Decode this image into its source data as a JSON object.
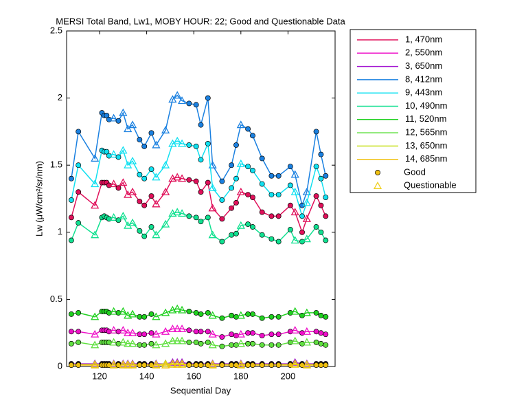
{
  "chart_data": {
    "type": "line",
    "title": "MERSI Total Band,  Lw1, MOBY HOUR: 22;  Good and Questionable Data",
    "x_label": "Sequential Day",
    "y_label": "Lw (μW/cm²/sr/nm)",
    "xlim": [
      106,
      220
    ],
    "xticks": [
      120,
      140,
      160,
      180,
      200
    ],
    "ylim": [
      0,
      2.5
    ],
    "yticks": [
      0,
      0.5,
      1,
      1.5,
      2,
      2.5
    ],
    "x": [
      108,
      111,
      118,
      121,
      122,
      123,
      124,
      126,
      128,
      130,
      132,
      134,
      137,
      139,
      142,
      144,
      148,
      151,
      153,
      155,
      158,
      161,
      163,
      166,
      168,
      172,
      176,
      178,
      180,
      183,
      185,
      189,
      193,
      196,
      201,
      203,
      206,
      208,
      212,
      214,
      216
    ],
    "questionable": [
      false,
      false,
      true,
      false,
      false,
      false,
      false,
      true,
      false,
      true,
      true,
      true,
      false,
      false,
      false,
      true,
      true,
      true,
      true,
      true,
      false,
      false,
      false,
      false,
      true,
      false,
      false,
      false,
      true,
      false,
      false,
      false,
      false,
      false,
      false,
      true,
      false,
      true,
      false,
      false,
      false
    ],
    "marker_legend": [
      "Good",
      "Questionable"
    ],
    "series": [
      {
        "name": "1, 470nm",
        "color": "#e0105a",
        "values": [
          1.11,
          1.3,
          1.2,
          1.37,
          1.37,
          1.37,
          1.35,
          1.36,
          1.33,
          1.37,
          1.28,
          1.3,
          1.23,
          1.2,
          1.27,
          1.21,
          1.3,
          1.4,
          1.41,
          1.4,
          1.39,
          1.38,
          1.3,
          1.37,
          1.18,
          1.1,
          1.18,
          1.22,
          1.3,
          1.28,
          1.26,
          1.15,
          1.12,
          1.12,
          1.2,
          1.15,
          1.0,
          1.1,
          1.27,
          1.2,
          1.12
        ]
      },
      {
        "name": "2, 550nm",
        "color": "#ee10c8",
        "values": [
          0.26,
          0.26,
          0.24,
          0.27,
          0.27,
          0.27,
          0.26,
          0.27,
          0.26,
          0.27,
          0.25,
          0.25,
          0.24,
          0.24,
          0.25,
          0.24,
          0.26,
          0.28,
          0.28,
          0.28,
          0.27,
          0.26,
          0.26,
          0.26,
          0.24,
          0.22,
          0.24,
          0.23,
          0.24,
          0.25,
          0.25,
          0.23,
          0.24,
          0.24,
          0.26,
          0.27,
          0.25,
          0.26,
          0.26,
          0.25,
          0.24
        ]
      },
      {
        "name": "3, 650nm",
        "color": "#a010d0",
        "values": [
          0.02,
          0.02,
          0.02,
          0.02,
          0.02,
          0.02,
          0.02,
          0.02,
          0.02,
          0.02,
          0.02,
          0.02,
          0.02,
          0.02,
          0.02,
          0.02,
          0.02,
          0.03,
          0.03,
          0.03,
          0.02,
          0.02,
          0.02,
          0.02,
          0.02,
          0.02,
          0.02,
          0.02,
          0.02,
          0.02,
          0.02,
          0.02,
          0.02,
          0.02,
          0.02,
          0.03,
          0.02,
          0.02,
          0.02,
          0.02,
          0.02
        ]
      },
      {
        "name": "8, 412nm",
        "color": "#1a80e0",
        "values": [
          1.4,
          1.75,
          1.55,
          1.89,
          1.87,
          1.87,
          1.84,
          1.85,
          1.83,
          1.89,
          1.77,
          1.8,
          1.69,
          1.64,
          1.74,
          1.65,
          1.76,
          1.99,
          2.02,
          1.98,
          1.96,
          1.95,
          1.8,
          2.0,
          1.5,
          1.38,
          1.5,
          1.65,
          1.8,
          1.77,
          1.72,
          1.55,
          1.42,
          1.42,
          1.49,
          1.43,
          1.2,
          1.3,
          1.75,
          1.58,
          1.42
        ]
      },
      {
        "name": "9, 443nm",
        "color": "#10e0f0",
        "values": [
          1.24,
          1.5,
          1.36,
          1.61,
          1.6,
          1.6,
          1.57,
          1.58,
          1.56,
          1.61,
          1.5,
          1.53,
          1.43,
          1.4,
          1.47,
          1.41,
          1.5,
          1.66,
          1.68,
          1.66,
          1.65,
          1.64,
          1.54,
          1.66,
          1.33,
          1.24,
          1.33,
          1.4,
          1.51,
          1.49,
          1.46,
          1.36,
          1.28,
          1.28,
          1.35,
          1.3,
          1.12,
          1.22,
          1.49,
          1.4,
          1.26
        ]
      },
      {
        "name": "10, 490nm",
        "color": "#10e090",
        "values": [
          0.94,
          1.07,
          0.98,
          1.11,
          1.12,
          1.11,
          1.1,
          1.11,
          1.09,
          1.12,
          1.05,
          1.07,
          1.01,
          0.97,
          1.04,
          0.98,
          1.06,
          1.14,
          1.15,
          1.14,
          1.12,
          1.11,
          1.08,
          1.11,
          0.98,
          0.93,
          0.98,
          0.99,
          1.05,
          1.06,
          1.04,
          0.98,
          0.95,
          0.93,
          1.02,
          0.94,
          0.93,
          0.95,
          1.04,
          1.0,
          0.94
        ]
      },
      {
        "name": "11, 520nm",
        "color": "#20d020",
        "values": [
          0.39,
          0.4,
          0.37,
          0.41,
          0.41,
          0.41,
          0.4,
          0.41,
          0.4,
          0.41,
          0.38,
          0.39,
          0.37,
          0.37,
          0.39,
          0.37,
          0.4,
          0.42,
          0.43,
          0.42,
          0.41,
          0.4,
          0.39,
          0.4,
          0.38,
          0.36,
          0.38,
          0.37,
          0.38,
          0.39,
          0.39,
          0.36,
          0.37,
          0.37,
          0.4,
          0.41,
          0.38,
          0.4,
          0.4,
          0.38,
          0.37
        ]
      },
      {
        "name": "12, 565nm",
        "color": "#60e040",
        "values": [
          0.17,
          0.18,
          0.16,
          0.18,
          0.18,
          0.18,
          0.18,
          0.18,
          0.17,
          0.18,
          0.17,
          0.17,
          0.16,
          0.16,
          0.17,
          0.16,
          0.17,
          0.19,
          0.19,
          0.19,
          0.18,
          0.18,
          0.17,
          0.18,
          0.16,
          0.15,
          0.16,
          0.16,
          0.17,
          0.17,
          0.17,
          0.16,
          0.16,
          0.16,
          0.18,
          0.19,
          0.17,
          0.18,
          0.18,
          0.17,
          0.16
        ]
      },
      {
        "name": "13, 650nm",
        "color": "#c8e020",
        "values": [
          0.015,
          0.015,
          0.015,
          0.015,
          0.015,
          0.015,
          0.015,
          0.015,
          0.015,
          0.015,
          0.015,
          0.015,
          0.015,
          0.015,
          0.015,
          0.015,
          0.02,
          0.02,
          0.02,
          0.02,
          0.015,
          0.015,
          0.015,
          0.015,
          0.015,
          0.015,
          0.015,
          0.015,
          0.015,
          0.015,
          0.015,
          0.015,
          0.015,
          0.015,
          0.015,
          0.02,
          0.015,
          0.015,
          0.015,
          0.015,
          0.015
        ]
      },
      {
        "name": "14, 685nm",
        "color": "#f0c010",
        "values": [
          0.01,
          0.01,
          0.01,
          0.01,
          0.01,
          0.01,
          0.01,
          0.01,
          0.01,
          0.01,
          0.01,
          0.01,
          0.01,
          0.01,
          0.01,
          0.01,
          0.01,
          0.015,
          0.015,
          0.015,
          0.01,
          0.01,
          0.01,
          0.01,
          0.01,
          0.01,
          0.01,
          0.01,
          0.01,
          0.01,
          0.01,
          0.01,
          0.01,
          0.01,
          0.01,
          0.015,
          0.01,
          0.01,
          0.01,
          0.01,
          0.01
        ]
      }
    ]
  }
}
